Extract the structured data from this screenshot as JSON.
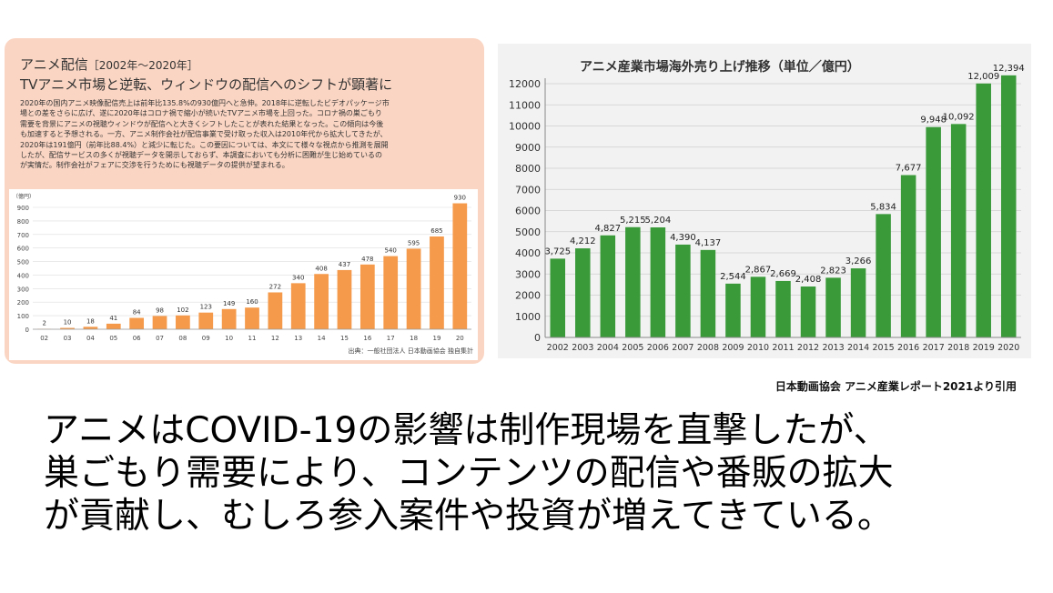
{
  "left": {
    "title": "アニメ配信",
    "title_range": "［2002年～2020年］",
    "subtitle": "TVアニメ市場と逆転、ウィンドウの配信へのシフトが顕著に",
    "body": [
      "2020年の国内アニメ映像配信売上は前年比135.8%の930億円へと急伸。2018年に逆転したビデオパッケージ市",
      "場との差をさらに広げ、遂に2020年はコロナ禍で縮小が続いたTVアニメ市場を上回った。コロナ禍の巣ごもり",
      "需要を背景にアニメの視聴ウィンドウが配信へと大きくシフトしたことが表れた結果となった。この傾向は今後",
      "も加速すると予想される。一方、アニメ制作会社が配信事業で受け取った収入は2010年代から拡大してきたが、",
      "2020年は191億円（前年比88.4%）と減少に転じた。この要因については、本文にて様々な視点から推測を展開",
      "したが、配信サービスの多くが視聴データを開示しておらず、本調査においても分析に困難が生じ始めているの",
      "が実情だ。制作会社がフェアに交渉を行うためにも視聴データの提供が望まれる。"
    ],
    "source": "出典：一般社団法人 日本動画協会 独自集計"
  },
  "right": {
    "citation": "日本動画協会 アニメ産業レポート2021より引用"
  },
  "main_text": [
    "アニメはCOVID-19の影響は制作現場を直撃したが、",
    "巣ごもり需要により、コンテンツの配信や番販の拡大",
    "が貢献し、むしろ参入案件や投資が増えてきている。"
  ],
  "chart_data": [
    {
      "type": "bar",
      "title": "",
      "unit": "（億円）",
      "categories": [
        "02",
        "03",
        "04",
        "05",
        "06",
        "07",
        "08",
        "09",
        "10",
        "11",
        "12",
        "13",
        "14",
        "15",
        "16",
        "17",
        "18",
        "19",
        "20"
      ],
      "values": [
        2,
        10,
        18,
        41,
        84,
        98,
        102,
        123,
        149,
        160,
        272,
        340,
        408,
        437,
        478,
        540,
        595,
        685,
        930
      ],
      "ylim": [
        0,
        900
      ],
      "yticks": [
        0,
        100,
        200,
        300,
        400,
        500,
        600,
        700,
        800,
        900
      ],
      "grid": true,
      "bar_color": "#f59a4a"
    },
    {
      "type": "bar",
      "title": "アニメ産業市場海外売り上げ推移（単位／億円）",
      "categories": [
        "2002",
        "2003",
        "2004",
        "2005",
        "2006",
        "2007",
        "2008",
        "2009",
        "2010",
        "2011",
        "2012",
        "2013",
        "2014",
        "2015",
        "2016",
        "2017",
        "2018",
        "2019",
        "2020"
      ],
      "values": [
        3725,
        4212,
        4827,
        5215,
        5204,
        4390,
        4137,
        2544,
        2867,
        2669,
        2408,
        2823,
        3266,
        5834,
        7677,
        9948,
        10092,
        12009,
        12394
      ],
      "ylim": [
        0,
        12000
      ],
      "yticks": [
        0,
        1000,
        2000,
        3000,
        4000,
        5000,
        6000,
        7000,
        8000,
        9000,
        10000,
        11000,
        12000
      ],
      "grid": true,
      "bar_color": "#3a9a3a"
    }
  ]
}
